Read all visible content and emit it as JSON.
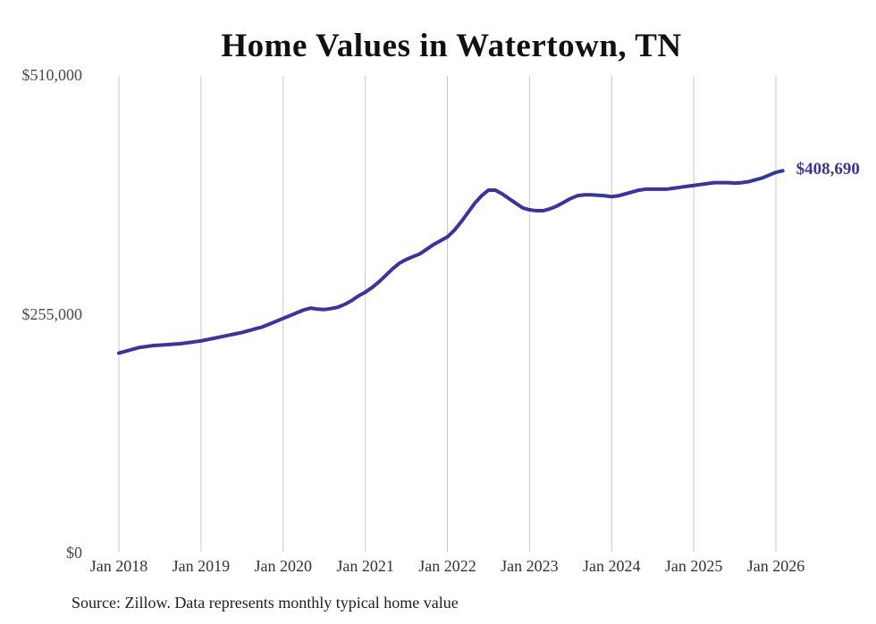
{
  "page": {
    "source_note": "Source: Zillow. Data represents monthly typical home value"
  },
  "colors": {
    "line": "#3a33a0",
    "grid": "#c9c9c9",
    "end_label": "#3a33a0"
  },
  "chart_data": {
    "type": "line",
    "title": "Home Values in Watertown, TN",
    "series_name": "Typical home value",
    "x_start": "Jan 2018",
    "x_end": "Feb 2026",
    "x_interval": "month",
    "x_tick_labels": [
      "Jan 2018",
      "Jan 2019",
      "Jan 2020",
      "Jan 2021",
      "Jan 2022",
      "Jan 2023",
      "Jan 2024",
      "Jan 2025",
      "Jan 2026"
    ],
    "y_ticks": [
      {
        "label": "$0",
        "value": 0
      },
      {
        "label": "$255,000",
        "value": 255000
      },
      {
        "label": "$510,000",
        "value": 510000
      }
    ],
    "ylim": [
      0,
      510000
    ],
    "grid": "vertical-only",
    "legend": "none",
    "end_label": "$408,690",
    "final_value": 408690,
    "values": [
      214000,
      216000,
      218000,
      220000,
      221000,
      222000,
      222500,
      223000,
      223500,
      224000,
      225000,
      226000,
      227000,
      228500,
      230000,
      231500,
      233000,
      234500,
      236000,
      238000,
      240000,
      242000,
      245000,
      248000,
      251000,
      254000,
      257000,
      260000,
      262000,
      261000,
      260500,
      261500,
      263000,
      266000,
      270000,
      275000,
      279000,
      284000,
      290000,
      297000,
      304000,
      310000,
      314000,
      317000,
      320000,
      325000,
      330000,
      334000,
      338000,
      345000,
      354000,
      364000,
      374000,
      382000,
      388000,
      388000,
      384000,
      379000,
      374000,
      369000,
      367000,
      366000,
      366000,
      368000,
      371000,
      375000,
      379000,
      382000,
      383000,
      383000,
      382500,
      382000,
      381000,
      382000,
      384000,
      386000,
      388000,
      389000,
      389000,
      389000,
      389000,
      390000,
      391000,
      392000,
      393000,
      394000,
      395000,
      396000,
      396000,
      396000,
      395500,
      396000,
      397000,
      399000,
      401000,
      404000,
      407000,
      408690
    ]
  }
}
